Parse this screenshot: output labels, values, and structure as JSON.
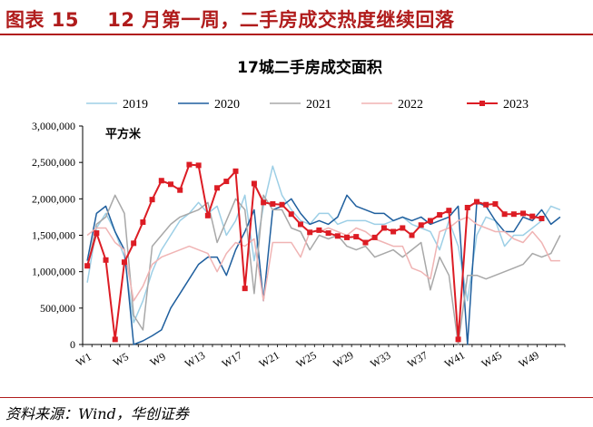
{
  "figure": {
    "label": "图表 15",
    "caption": "12 月第一周，二手房成交热度继续回落",
    "source": "资料来源：Wind，华创证券"
  },
  "chart_data": {
    "type": "line",
    "title": "17城二手房成交面积",
    "unit_label": "平方米",
    "ylim": [
      0,
      3000000
    ],
    "y_ticks": [
      0,
      500000,
      1000000,
      1500000,
      2000000,
      2500000,
      3000000
    ],
    "y_tick_labels": [
      "0",
      "500,000",
      "1,000,000",
      "1,500,000",
      "2,000,000",
      "2,500,000",
      "3,000,000"
    ],
    "x_ticks": [
      "W1",
      "W5",
      "W9",
      "W13",
      "W17",
      "W21",
      "W25",
      "W29",
      "W33",
      "W37",
      "W41",
      "W45",
      "W49"
    ],
    "x_weeks": 52,
    "legend_position": "top",
    "grid": false,
    "series": [
      {
        "name": "2019",
        "color": "#9dcfe6",
        "values": [
          850000,
          1600000,
          1800000,
          1550000,
          1200000,
          300000,
          600000,
          1000000,
          1300000,
          1500000,
          1700000,
          1800000,
          1950000,
          1800000,
          1900000,
          1500000,
          1700000,
          2050000,
          1150000,
          1900000,
          2450000,
          2050000,
          1850000,
          1700000,
          1650000,
          1800000,
          1800000,
          1650000,
          1700000,
          1700000,
          1700000,
          1650000,
          1650000,
          1700000,
          1750000,
          1650000,
          1600000,
          1550000,
          1300000,
          1700000,
          1350000,
          600000,
          1500000,
          1750000,
          1700000,
          1350000,
          1500000,
          1500000,
          1600000,
          1700000,
          1900000,
          1850000
        ]
      },
      {
        "name": "2020",
        "color": "#1f5f9e",
        "values": [
          1150000,
          1800000,
          1900000,
          1550000,
          1300000,
          0,
          50000,
          120000,
          200000,
          500000,
          700000,
          900000,
          1100000,
          1200000,
          1200000,
          950000,
          1300000,
          1550000,
          1850000,
          600000,
          1850000,
          1900000,
          2000000,
          1800000,
          1650000,
          1700000,
          1650000,
          1750000,
          2050000,
          1900000,
          1850000,
          1800000,
          1800000,
          1700000,
          1750000,
          1700000,
          1750000,
          1650000,
          1700000,
          1750000,
          1900000,
          0,
          1950000,
          1900000,
          1700000,
          1550000,
          1550000,
          1750000,
          1700000,
          1850000,
          1650000,
          1750000
        ]
      },
      {
        "name": "2021",
        "color": "#a8a8a8",
        "values": [
          1050000,
          1650000,
          1750000,
          2050000,
          1800000,
          400000,
          200000,
          1350000,
          1500000,
          1650000,
          1750000,
          1800000,
          1850000,
          1950000,
          1400000,
          1700000,
          2000000,
          1850000,
          700000,
          2050000,
          1850000,
          1850000,
          1600000,
          1550000,
          1300000,
          1500000,
          1450000,
          1500000,
          1350000,
          1300000,
          1350000,
          1200000,
          1250000,
          1300000,
          1200000,
          1300000,
          1400000,
          750000,
          1200000,
          950000,
          0,
          950000,
          950000,
          900000,
          950000,
          1000000,
          1050000,
          1100000,
          1250000,
          1200000,
          1250000,
          1500000
        ]
      },
      {
        "name": "2022",
        "color": "#f0b4b4",
        "values": [
          1500000,
          1600000,
          1600000,
          1400000,
          1300000,
          600000,
          800000,
          1100000,
          1200000,
          1250000,
          1300000,
          1350000,
          1300000,
          1250000,
          1000000,
          1250000,
          1400000,
          1350000,
          1450000,
          600000,
          1400000,
          1400000,
          1400000,
          1200000,
          1550000,
          1550000,
          1600000,
          1550000,
          1500000,
          1600000,
          1550000,
          1450000,
          1400000,
          1350000,
          1350000,
          1050000,
          1000000,
          900000,
          1550000,
          1600000,
          1700000,
          1750000,
          1650000,
          1600000,
          1550000,
          1550000,
          1450000,
          1400000,
          1550000,
          1400000,
          1150000,
          1150000
        ]
      },
      {
        "name": "2023",
        "color": "#dc1c24",
        "marker": "square",
        "values": [
          1080000,
          1530000,
          1160000,
          70000,
          1130000,
          1390000,
          1680000,
          1990000,
          2250000,
          2200000,
          2120000,
          2470000,
          2460000,
          1770000,
          2150000,
          2240000,
          2380000,
          770000,
          2210000,
          1950000,
          1930000,
          1920000,
          1790000,
          1650000,
          1540000,
          1570000,
          1530000,
          1490000,
          1470000,
          1480000,
          1400000,
          1470000,
          1600000,
          1550000,
          1600000,
          1500000,
          1640000,
          1700000,
          1780000,
          1840000,
          70000,
          1880000,
          1960000,
          1920000,
          1930000,
          1790000,
          1790000,
          1800000,
          1760000,
          1730000
        ]
      }
    ]
  }
}
